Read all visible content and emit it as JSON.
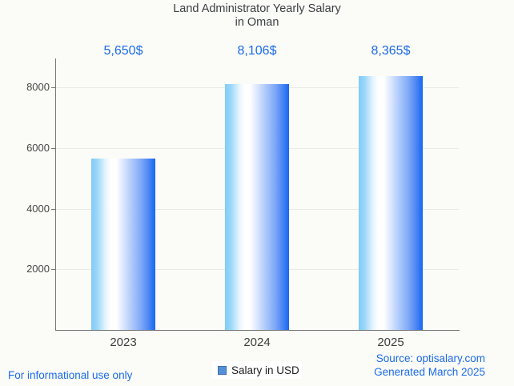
{
  "page": {
    "background": "#FBFBF7"
  },
  "title": {
    "line1": "Land Administrator Yearly Salary",
    "line2": "in Oman"
  },
  "chart_data": {
    "type": "bar",
    "title": "Land Administrator Yearly Salary in Oman",
    "categories": [
      "2023",
      "2024",
      "2025"
    ],
    "series": [
      {
        "name": "Salary in USD",
        "values": [
          5650,
          8106,
          8365
        ]
      }
    ],
    "value_labels": [
      "5,650$",
      "8,106$",
      "8,365$"
    ],
    "xlabel": "",
    "ylabel": "",
    "ylim": [
      0,
      8900
    ],
    "yticks": [
      2000,
      4000,
      6000,
      8000
    ],
    "grid": true,
    "legend_position": "bottom-center"
  },
  "legend": {
    "label": "Salary in USD",
    "swatch_color": "#5490D6",
    "swatch_border_color": "#3D6FB2"
  },
  "footer": {
    "left_note": "For informational use only",
    "source_line1": "Source: optisalary.com",
    "source_line2": "Generated March 2025"
  },
  "colors": {
    "accent_blue": "#1B6CEB",
    "bar_gradient_left": "#7FCCF8",
    "bar_gradient_mid": "#FFFFFF",
    "bar_gradient_right": "#1567F0",
    "title_text": "#3C4043",
    "axis_text": "#474747",
    "axis_line": "#757575",
    "gridline": "#EAEAE6",
    "page_background": "#FBFBF7"
  }
}
